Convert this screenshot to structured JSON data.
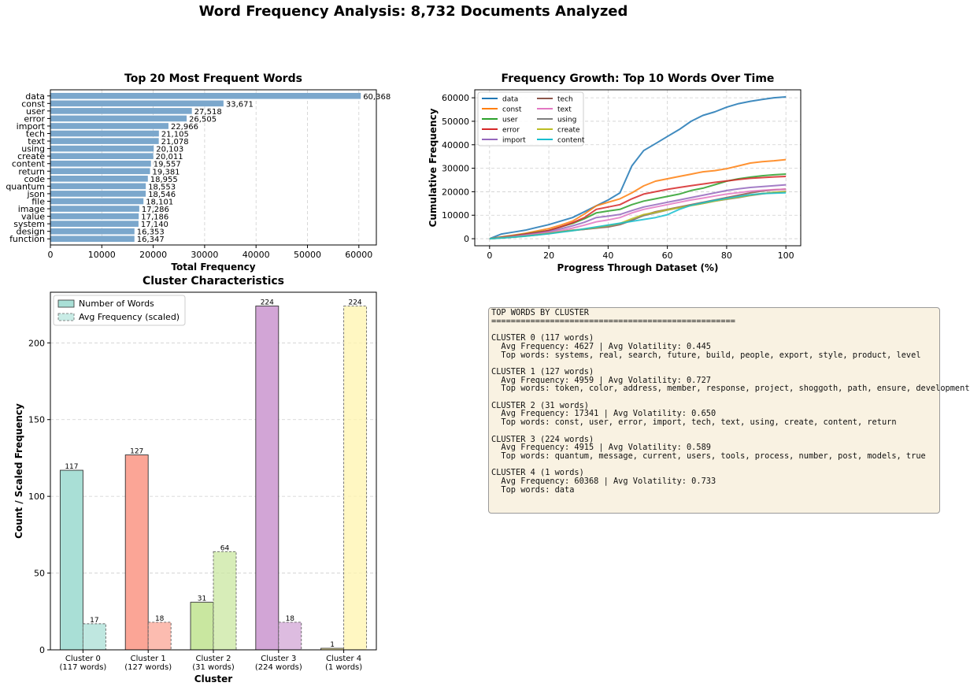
{
  "suptitle": "Word Frequency Analysis: 8,732 Documents Analyzed",
  "chart_data": [
    {
      "type": "bar",
      "orientation": "horizontal",
      "title": "Top 20 Most Frequent Words",
      "xlabel": "Total Frequency",
      "ylabel": "",
      "xlim": [
        0,
        63400
      ],
      "xticks": [
        0,
        10000,
        20000,
        30000,
        40000,
        50000,
        60000
      ],
      "grid": true,
      "color": "#7ba7cc",
      "categories": [
        "data",
        "const",
        "user",
        "error",
        "import",
        "tech",
        "text",
        "using",
        "create",
        "content",
        "return",
        "code",
        "quantum",
        "json",
        "file",
        "image",
        "value",
        "system",
        "design",
        "function"
      ],
      "values": [
        60368,
        33671,
        27518,
        26505,
        22966,
        21105,
        21078,
        20103,
        20011,
        19557,
        19381,
        18955,
        18553,
        18546,
        18101,
        17286,
        17186,
        17140,
        16353,
        16347
      ],
      "value_labels": [
        "60,368",
        "33,671",
        "27,518",
        "26,505",
        "22,966",
        "21,105",
        "21,078",
        "20,103",
        "20,011",
        "19,557",
        "19,381",
        "18,955",
        "18,553",
        "18,546",
        "18,101",
        "17,286",
        "17,186",
        "17,140",
        "16,353",
        "16,347"
      ]
    },
    {
      "type": "line",
      "title": "Frequency Growth: Top 10 Words Over Time",
      "xlabel": "Progress Through Dataset (%)",
      "ylabel": "Cumulative Frequency",
      "xlim": [
        -5,
        105
      ],
      "ylim": [
        -3000,
        63400
      ],
      "xticks": [
        0,
        20,
        40,
        60,
        80,
        100
      ],
      "yticks": [
        0,
        10000,
        20000,
        30000,
        40000,
        50000,
        60000
      ],
      "grid": true,
      "legend": "top-left",
      "x": [
        0,
        4,
        8,
        12,
        16,
        20,
        24,
        28,
        32,
        36,
        40,
        44,
        48,
        52,
        56,
        60,
        64,
        68,
        72,
        76,
        80,
        84,
        88,
        92,
        96,
        100
      ],
      "series": [
        {
          "name": "data",
          "color": "#1f77b4",
          "values": [
            0,
            2000,
            2800,
            3600,
            4800,
            6000,
            7500,
            9000,
            11500,
            14000,
            16500,
            19500,
            31000,
            37500,
            40500,
            43500,
            46500,
            50000,
            52500,
            54000,
            56000,
            57500,
            58500,
            59300,
            60000,
            60368
          ]
        },
        {
          "name": "const",
          "color": "#ff7f0e",
          "values": [
            0,
            800,
            1500,
            2300,
            3300,
            4300,
            5800,
            7500,
            10500,
            14000,
            15500,
            17000,
            19500,
            22500,
            24500,
            25500,
            26500,
            27500,
            28500,
            29000,
            29800,
            31000,
            32200,
            32800,
            33200,
            33671
          ]
        },
        {
          "name": "user",
          "color": "#2ca02c",
          "values": [
            0,
            700,
            1300,
            2000,
            2800,
            3500,
            5000,
            6500,
            8500,
            11000,
            11800,
            12500,
            14500,
            16000,
            17000,
            18000,
            19000,
            20500,
            21500,
            23000,
            24500,
            25500,
            26200,
            26800,
            27200,
            27518
          ]
        },
        {
          "name": "error",
          "color": "#d62728",
          "values": [
            0,
            600,
            1200,
            1900,
            2600,
            3500,
            5000,
            6800,
            9000,
            12500,
            13500,
            14500,
            17000,
            19000,
            20000,
            21000,
            21800,
            22600,
            23300,
            24000,
            24600,
            25200,
            25700,
            26000,
            26300,
            26505
          ]
        },
        {
          "name": "import",
          "color": "#9467bd",
          "values": [
            0,
            500,
            1000,
            1600,
            2300,
            3000,
            4200,
            5500,
            7000,
            9000,
            9600,
            10300,
            12000,
            13500,
            14500,
            15500,
            16500,
            17500,
            18500,
            19500,
            20500,
            21200,
            21800,
            22200,
            22600,
            22966
          ]
        },
        {
          "name": "tech",
          "color": "#8c564b",
          "values": [
            0,
            400,
            800,
            1300,
            1800,
            2400,
            3000,
            3600,
            4000,
            4500,
            5000,
            6000,
            7800,
            10000,
            11500,
            12500,
            13500,
            14500,
            15500,
            16500,
            17500,
            18500,
            19500,
            20300,
            20800,
            21105
          ]
        },
        {
          "name": "text",
          "color": "#e377c2",
          "values": [
            0,
            400,
            850,
            1400,
            2000,
            2600,
            3500,
            4500,
            5800,
            7200,
            8000,
            9000,
            11000,
            12500,
            13500,
            14500,
            15500,
            16500,
            17300,
            18200,
            19000,
            19600,
            20200,
            20600,
            20900,
            21078
          ]
        },
        {
          "name": "using",
          "color": "#7f7f7f",
          "values": [
            0,
            350,
            700,
            1100,
            1600,
            2200,
            2900,
            3500,
            4000,
            4600,
            5400,
            6300,
            8000,
            9800,
            11000,
            12200,
            13200,
            14200,
            15000,
            16000,
            16800,
            17500,
            18400,
            19100,
            19700,
            20103
          ]
        },
        {
          "name": "create",
          "color": "#bcbd22",
          "values": [
            0,
            350,
            700,
            1150,
            1650,
            2250,
            2950,
            3550,
            4100,
            4800,
            5600,
            6500,
            8500,
            10300,
            11200,
            12300,
            13200,
            14100,
            15000,
            16000,
            16900,
            17700,
            18500,
            19200,
            19700,
            20011
          ]
        },
        {
          "name": "content",
          "color": "#17becf",
          "values": [
            0,
            300,
            650,
            1050,
            1550,
            2100,
            2800,
            3400,
            4200,
            5000,
            5800,
            6600,
            7400,
            8200,
            9000,
            10200,
            12500,
            14200,
            15300,
            16300,
            17200,
            18000,
            18700,
            19200,
            19400,
            19557
          ]
        }
      ]
    },
    {
      "type": "bar",
      "title": "Cluster Characteristics",
      "xlabel": "Cluster",
      "ylabel": "Count / Scaled Frequency",
      "ylim": [
        0,
        233
      ],
      "yticks": [
        0,
        50,
        100,
        150,
        200
      ],
      "grid": true,
      "legend": "top-left",
      "categories": [
        "Cluster 0\n(117 words)",
        "Cluster 1\n(127 words)",
        "Cluster 2\n(31 words)",
        "Cluster 3\n(224 words)",
        "Cluster 4\n(1 words)"
      ],
      "colors": [
        "#a9dfd6",
        "#fba596",
        "#c9e7a0",
        "#d2a5d6",
        "#fff4ad"
      ],
      "series": [
        {
          "name": "Number of Words",
          "values": [
            117,
            127,
            31,
            224,
            1
          ]
        },
        {
          "name": "Avg Frequency (scaled)",
          "values": [
            17,
            18,
            64,
            18,
            224
          ]
        }
      ]
    }
  ],
  "cluster_summary": {
    "text": "TOP WORDS BY CLUSTER\n==================================================\n\nCLUSTER 0 (117 words)\n  Avg Frequency: 4627 | Avg Volatility: 0.445\n  Top words: systems, real, search, future, build, people, export, style, product, level\n\nCLUSTER 1 (127 words)\n  Avg Frequency: 4959 | Avg Volatility: 0.727\n  Top words: token, color, address, member, response, project, shoggoth, path, ensure, development\n\nCLUSTER 2 (31 words)\n  Avg Frequency: 17341 | Avg Volatility: 0.650\n  Top words: const, user, error, import, tech, text, using, create, content, return\n\nCLUSTER 3 (224 words)\n  Avg Frequency: 4915 | Avg Volatility: 0.589\n  Top words: quantum, message, current, users, tools, process, number, post, models, true\n\nCLUSTER 4 (1 words)\n  Avg Frequency: 60368 | Avg Volatility: 0.733\n  Top words: data"
  }
}
